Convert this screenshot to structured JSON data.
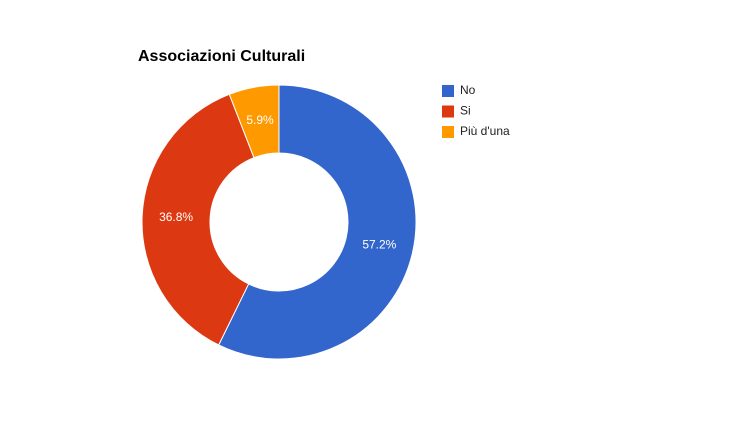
{
  "chart_data": {
    "type": "donut",
    "title": "Associazioni Culturali",
    "categories": [
      "No",
      "Si",
      "Più d'una"
    ],
    "values": [
      57.2,
      36.8,
      5.9
    ],
    "value_labels": [
      "57.2%",
      "36.8%",
      "5.9%"
    ],
    "colors": [
      "#3366cc",
      "#dc3912",
      "#ff9900"
    ],
    "legend": "right"
  }
}
